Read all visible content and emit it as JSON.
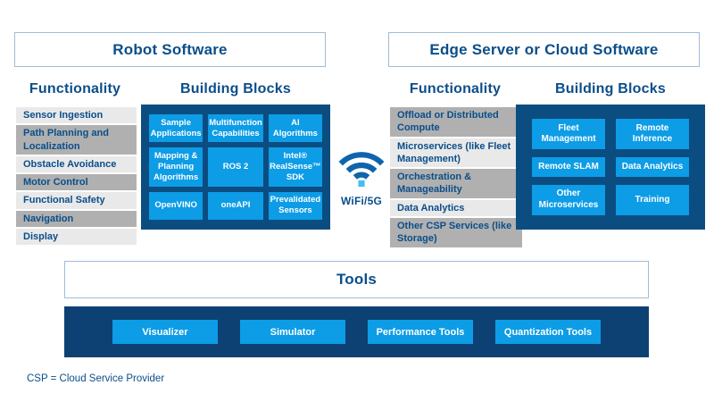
{
  "colors": {
    "heading_blue": "#0a4e8a",
    "container_blue": "#0b4d80",
    "tile_blue": "#0d9ce6",
    "tools_bar_blue": "#0e4173",
    "item_light_gray": "#e9e9e9",
    "item_dark_gray": "#b0b0b0",
    "box_border": "#9fbcd6",
    "wifi_arc": "#0f64ad",
    "wifi_dot": "#41c0f0"
  },
  "robot_section": {
    "title": "Robot Software",
    "functionality_heading": "Functionality",
    "building_blocks_heading": "Building Blocks",
    "functionality_items": [
      {
        "label": "Sensor Ingestion",
        "shade": "light"
      },
      {
        "label": "Path Planning and Localization",
        "shade": "dark"
      },
      {
        "label": "Obstacle Avoidance",
        "shade": "light"
      },
      {
        "label": "Motor Control",
        "shade": "dark"
      },
      {
        "label": "Functional Safety",
        "shade": "light"
      },
      {
        "label": "Navigation",
        "shade": "dark"
      },
      {
        "label": "Display",
        "shade": "light"
      }
    ],
    "building_blocks": [
      "Sample Applications",
      "Multifunction Capabilities",
      "AI Algorithms",
      "Mapping & Planning Algorithms",
      "ROS 2",
      "Intel® RealSense™ SDK",
      "OpenVINO",
      "oneAPI",
      "Prevalidated Sensors"
    ]
  },
  "connector": {
    "icon": "wifi-icon",
    "label": "WiFi/5G"
  },
  "edge_section": {
    "title": "Edge Server or Cloud Software",
    "functionality_heading": "Functionality",
    "building_blocks_heading": "Building Blocks",
    "functionality_items": [
      {
        "label": "Offload or Distributed Compute",
        "shade": "dark"
      },
      {
        "label": "Microservices (like Fleet Management)",
        "shade": "light"
      },
      {
        "label": "Orchestration & Manageability",
        "shade": "dark"
      },
      {
        "label": "Data Analytics",
        "shade": "light"
      },
      {
        "label": "Other CSP Services (like Storage)",
        "shade": "dark"
      }
    ],
    "building_blocks": [
      "Fleet Management",
      "Remote Inference",
      "Remote SLAM",
      "Data Analytics",
      "Other Microservices",
      "Training"
    ]
  },
  "tools_section": {
    "title": "Tools",
    "items": [
      "Visualizer",
      "Simulator",
      "Performance Tools",
      "Quantization Tools"
    ]
  },
  "footnote": "CSP = Cloud Service Provider"
}
